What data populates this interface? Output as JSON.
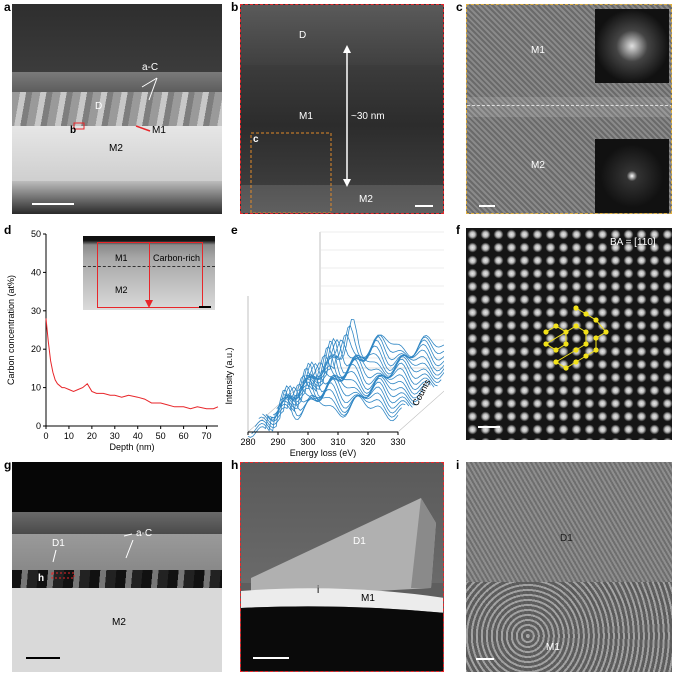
{
  "panels": {
    "a": {
      "letter": "a",
      "labels": {
        "ac": "a-C",
        "d": "D",
        "b": "b",
        "m1": "M1",
        "m2": "M2"
      }
    },
    "b": {
      "letter": "b",
      "labels": {
        "d": "D",
        "m1": "M1",
        "thickness": "~30 nm",
        "c": "c",
        "m2": "M2"
      }
    },
    "c": {
      "letter": "c",
      "labels": {
        "m1": "M1",
        "m2": "M2"
      }
    },
    "d": {
      "letter": "d",
      "labels": {
        "m1": "M1",
        "carbon": "Carbon-rich",
        "m2": "M2"
      }
    },
    "e": {
      "letter": "e"
    },
    "f": {
      "letter": "f",
      "labels": {
        "ba": "BA = [110]"
      }
    },
    "g": {
      "letter": "g",
      "labels": {
        "d1": "D1",
        "ac": "a-C",
        "h": "h",
        "m2": "M2"
      }
    },
    "h": {
      "letter": "h",
      "labels": {
        "d1": "D1",
        "i": "i",
        "m1": "M1"
      }
    },
    "i": {
      "letter": "i",
      "labels": {
        "d1": "D1",
        "m1": "M1"
      }
    }
  },
  "chart_data": [
    {
      "type": "line",
      "panel": "d",
      "xlabel": "Depth (nm)",
      "ylabel": "Carbon concentration (at%)",
      "xlim": [
        0,
        75
      ],
      "ylim": [
        0,
        50
      ],
      "xticks": [
        "0",
        "10",
        "20",
        "30",
        "40",
        "50",
        "60",
        "70"
      ],
      "yticks": [
        "0",
        "10",
        "20",
        "30",
        "40",
        "50"
      ],
      "line_color": "#e8262a",
      "series": [
        {
          "x": [
            0,
            1,
            2,
            3,
            4,
            5,
            6,
            7,
            8,
            10,
            12,
            14,
            16,
            18,
            20,
            22,
            25,
            28,
            30,
            33,
            36,
            40,
            43,
            46,
            50,
            53,
            56,
            60,
            63,
            66,
            70,
            73,
            75
          ],
          "y": [
            28,
            22,
            17,
            14,
            12,
            11,
            10.5,
            10,
            10,
            9.5,
            9,
            9.5,
            10,
            11,
            9,
            8.5,
            8.5,
            8,
            8,
            7.5,
            8,
            7.5,
            7,
            6,
            6,
            5.5,
            5,
            5,
            4.5,
            5,
            4.5,
            4.5,
            5
          ]
        }
      ]
    },
    {
      "type": "line",
      "panel": "e",
      "xlabel": "Energy loss (eV)",
      "ylabel": "Intensity (a.u.)",
      "zlabel": "Counts",
      "xlim": [
        280,
        330
      ],
      "xticks": [
        "280",
        "290",
        "300",
        "310",
        "320",
        "330"
      ],
      "line_color": "#2f86c4"
    }
  ]
}
